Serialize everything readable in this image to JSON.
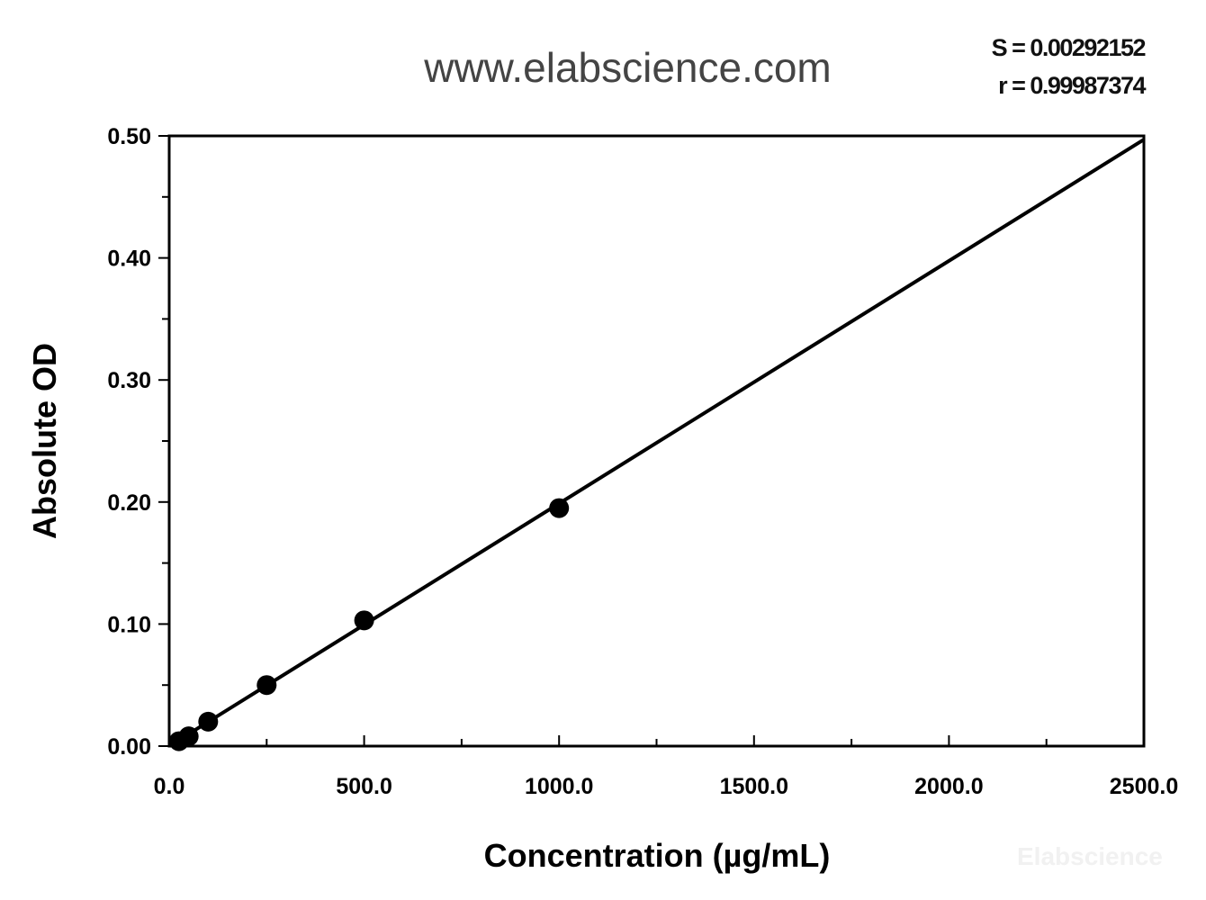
{
  "header": {
    "site": "www.elabscience.com",
    "watermark": "Elabscience"
  },
  "stats": {
    "s": "S = 0.00292152",
    "r": "r = 0.99987374"
  },
  "chart_data": {
    "type": "scatter",
    "title": "",
    "xlabel": "Concentration (µg/mL)",
    "ylabel": "Absolute OD",
    "xlim": [
      0,
      2500
    ],
    "ylim": [
      0,
      0.5
    ],
    "xticks": [
      "0.0",
      "500.0",
      "1000.0",
      "1500.0",
      "2000.0",
      "2500.0"
    ],
    "yticks": [
      "0.00",
      "0.10",
      "0.20",
      "0.30",
      "0.40",
      "0.50"
    ],
    "grid": false,
    "points": [
      {
        "x": 25,
        "y": 0.004
      },
      {
        "x": 50,
        "y": 0.008
      },
      {
        "x": 100,
        "y": 0.02
      },
      {
        "x": 250,
        "y": 0.05
      },
      {
        "x": 500,
        "y": 0.103
      },
      {
        "x": 1000,
        "y": 0.195
      }
    ],
    "fit_line": {
      "x": [
        0,
        2500
      ],
      "y": [
        0.0,
        0.497
      ]
    },
    "colors": {
      "points": "#000000",
      "line": "#000000"
    }
  }
}
